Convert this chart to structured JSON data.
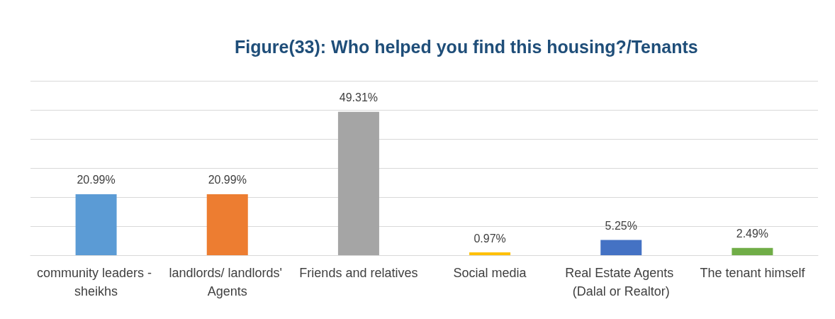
{
  "chart_data": {
    "type": "bar",
    "title": "Figure(33): Who helped you find this housing?/Tenants",
    "categories": [
      "community leaders - sheikhs",
      "landlords/ landlords' Agents",
      "Friends and relatives",
      "Social media",
      "Real Estate Agents (Dalal or Realtor)",
      "The tenant himself"
    ],
    "values": [
      20.99,
      20.99,
      49.31,
      0.97,
      5.25,
      2.49
    ],
    "colors": [
      "#5b9bd5",
      "#ed7d31",
      "#a5a5a5",
      "#ffc000",
      "#4472c4",
      "#70ad47"
    ],
    "value_labels": [
      "20.99%",
      "20.99%",
      "49.31%",
      "0.97%",
      "5.25%",
      "2.49%"
    ],
    "ylim": [
      0,
      60
    ],
    "yticks": [
      {
        "value": 0,
        "label": null
      },
      {
        "value": 10,
        "label": null
      },
      {
        "value": 20,
        "label": null
      },
      {
        "value": 30,
        "label": null
      },
      {
        "value": 40,
        "label": null
      },
      {
        "value": 50,
        "label": null
      },
      {
        "value": 60,
        "label": null
      }
    ],
    "grid": "y",
    "tick_labels": "x"
  }
}
